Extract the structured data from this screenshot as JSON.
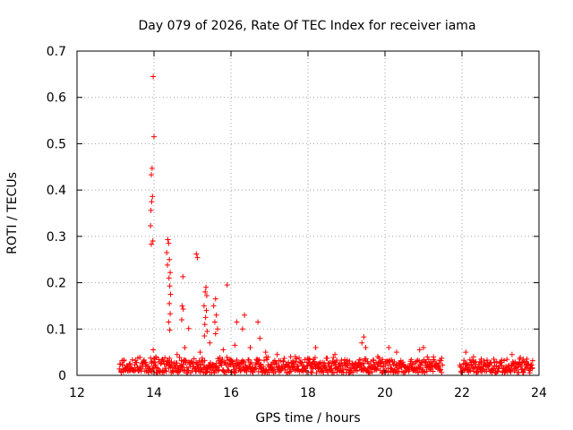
{
  "chart_data": {
    "type": "scatter",
    "title": "Day 079 of 2026, Rate Of TEC Index for receiver iama",
    "xlabel": "GPS time / hours",
    "ylabel": "ROTI / TECUs",
    "xlim": [
      12,
      24
    ],
    "ylim": [
      0,
      0.7
    ],
    "xticks": [
      "12",
      "14",
      "16",
      "18",
      "20",
      "22",
      "24"
    ],
    "yticks": [
      "0",
      "0.1",
      "0.2",
      "0.3",
      "0.4",
      "0.5",
      "0.6",
      "0.7"
    ],
    "grid": true,
    "marker": "+",
    "color": "#ff0000",
    "points": [
      [
        13.98,
        0.645
      ],
      [
        14.0,
        0.515
      ],
      [
        13.95,
        0.447
      ],
      [
        13.93,
        0.433
      ],
      [
        13.96,
        0.386
      ],
      [
        13.94,
        0.375
      ],
      [
        13.92,
        0.356
      ],
      [
        13.91,
        0.323
      ],
      [
        13.97,
        0.29
      ],
      [
        13.93,
        0.283
      ],
      [
        14.36,
        0.293
      ],
      [
        14.38,
        0.285
      ],
      [
        14.33,
        0.265
      ],
      [
        14.4,
        0.25
      ],
      [
        14.35,
        0.238
      ],
      [
        14.42,
        0.222
      ],
      [
        14.39,
        0.21
      ],
      [
        14.41,
        0.193
      ],
      [
        14.43,
        0.175
      ],
      [
        14.4,
        0.155
      ],
      [
        14.42,
        0.133
      ],
      [
        14.38,
        0.115
      ],
      [
        14.41,
        0.098
      ],
      [
        14.75,
        0.213
      ],
      [
        14.73,
        0.15
      ],
      [
        14.76,
        0.143
      ],
      [
        14.72,
        0.12
      ],
      [
        14.9,
        0.101
      ],
      [
        15.1,
        0.262
      ],
      [
        15.13,
        0.254
      ],
      [
        15.35,
        0.19
      ],
      [
        15.33,
        0.18
      ],
      [
        15.37,
        0.172
      ],
      [
        15.3,
        0.15
      ],
      [
        15.36,
        0.14
      ],
      [
        15.34,
        0.125
      ],
      [
        15.32,
        0.11
      ],
      [
        15.38,
        0.095
      ],
      [
        15.31,
        0.085
      ],
      [
        15.6,
        0.165
      ],
      [
        15.55,
        0.15
      ],
      [
        15.62,
        0.13
      ],
      [
        15.58,
        0.115
      ],
      [
        15.65,
        0.1
      ],
      [
        15.6,
        0.09
      ],
      [
        15.9,
        0.195
      ],
      [
        16.15,
        0.115
      ],
      [
        16.35,
        0.13
      ],
      [
        16.3,
        0.1
      ],
      [
        16.7,
        0.115
      ],
      [
        16.75,
        0.08
      ],
      [
        13.98,
        0.055
      ],
      [
        14.05,
        0.04
      ],
      [
        14.6,
        0.045
      ],
      [
        14.8,
        0.06
      ],
      [
        15.2,
        0.05
      ],
      [
        15.45,
        0.07
      ],
      [
        15.8,
        0.055
      ],
      [
        16.1,
        0.065
      ],
      [
        16.5,
        0.06
      ],
      [
        16.9,
        0.05
      ],
      [
        17.2,
        0.045
      ],
      [
        18.2,
        0.06
      ],
      [
        18.7,
        0.045
      ],
      [
        19.45,
        0.083
      ],
      [
        19.4,
        0.07
      ],
      [
        19.5,
        0.06
      ],
      [
        20.1,
        0.06
      ],
      [
        20.3,
        0.05
      ],
      [
        20.9,
        0.055
      ],
      [
        21.0,
        0.06
      ],
      [
        21.1,
        0.04
      ],
      [
        22.1,
        0.05
      ],
      [
        22.3,
        0.04
      ],
      [
        22.5,
        0.035
      ],
      [
        23.3,
        0.045
      ],
      [
        23.5,
        0.035
      ]
    ],
    "band_segments": [
      [
        13.1,
        21.5,
        0.032
      ],
      [
        21.95,
        23.85,
        0.03
      ]
    ]
  }
}
